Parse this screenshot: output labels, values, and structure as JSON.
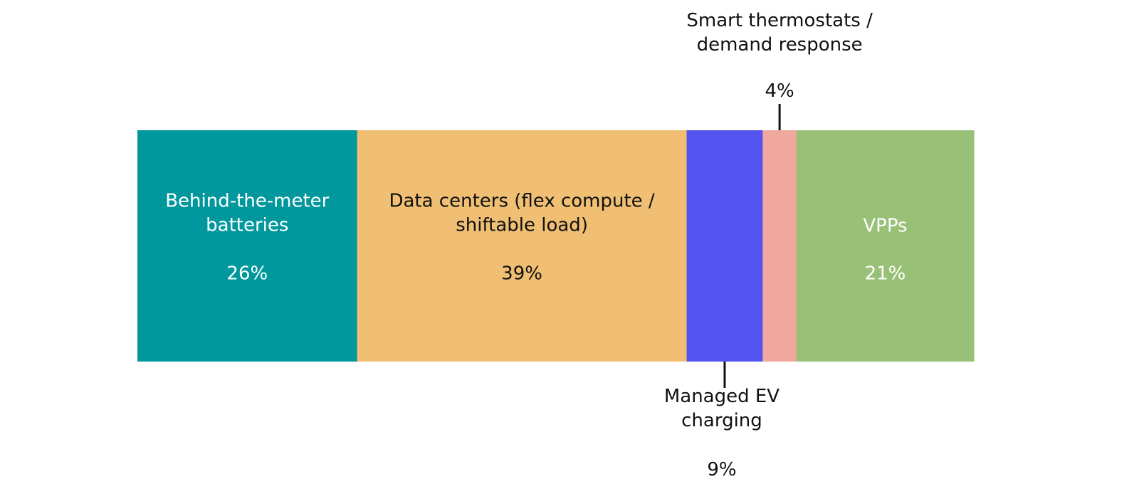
{
  "chart_data": {
    "type": "bar",
    "orientation": "horizontal-stacked",
    "total": 100,
    "series": [
      {
        "name": "Behind-the-meter batteries",
        "label_lines": [
          "Behind-the-meter",
          "batteries"
        ],
        "value": 26,
        "value_label": "26%",
        "color": "#00979D",
        "text_color": "#ffffff",
        "label_position": "inside"
      },
      {
        "name": "Data centers (flex compute / shiftable load)",
        "label_lines": [
          "Data centers (flex compute /",
          "shiftable load)"
        ],
        "value": 39,
        "value_label": "39%",
        "color": "#F0BF73",
        "text_color": "#111111",
        "label_position": "inside"
      },
      {
        "name": "Managed EV charging",
        "label_lines": [
          "Managed EV",
          "charging"
        ],
        "value": 9,
        "value_label": "9%",
        "color": "#5353F0",
        "text_color": "#111111",
        "label_position": "below"
      },
      {
        "name": "Smart thermostats / demand response",
        "label_lines": [
          "Smart thermostats /",
          "demand response"
        ],
        "value": 4,
        "value_label": "4%",
        "color": "#F0A79E",
        "text_color": "#111111",
        "label_position": "above"
      },
      {
        "name": "VPPs",
        "label_lines": [
          "VPPs"
        ],
        "value": 21,
        "value_label": "21%",
        "color": "#98C077",
        "text_color": "#ffffff",
        "label_position": "inside"
      }
    ]
  }
}
